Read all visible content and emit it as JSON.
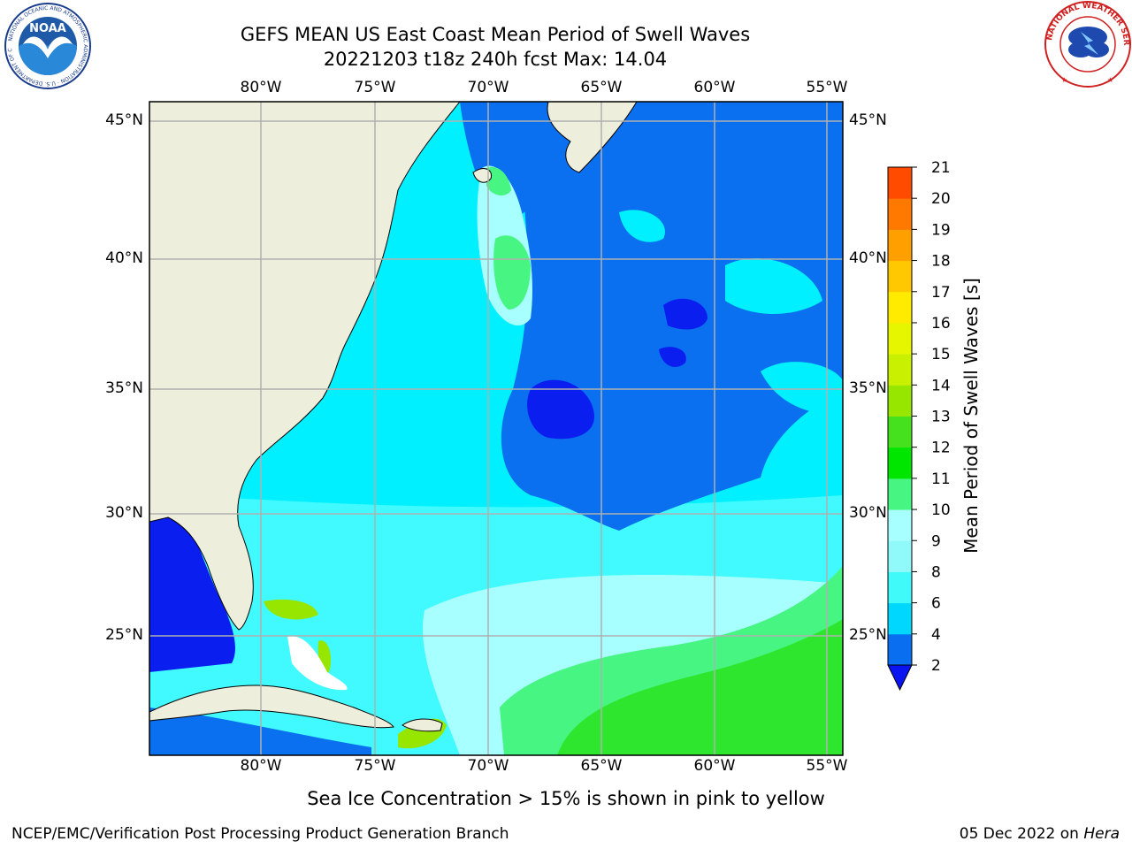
{
  "header": {
    "title_line1": "GEFS MEAN US East Coast Mean Period of Swell Waves",
    "title_line2": "20221203 t18z 240h fcst   Max: 14.04"
  },
  "map": {
    "lon_labels": [
      "80°W",
      "75°W",
      "70°W",
      "65°W",
      "60°W",
      "55°W"
    ],
    "lat_labels": [
      "45°N",
      "40°N",
      "35°N",
      "30°N",
      "25°N"
    ],
    "colors": {
      "land": "#eeeedc",
      "ocean_cyan": "#00f0ff",
      "ocean_blue": "#0a70f0",
      "deep_blue": "#0a1ef0",
      "light_cyan": "#60ffff",
      "pale_cyan": "#a0ffff",
      "green": "#30e830",
      "grid": "#b0b0b0"
    }
  },
  "colorbar": {
    "title": "Mean Period of Swell Waves [s]",
    "ticks": [
      "2",
      "4",
      "6",
      "8",
      "9",
      "10",
      "11",
      "12",
      "13",
      "14",
      "15",
      "16",
      "17",
      "18",
      "19",
      "20",
      "21"
    ],
    "colors": [
      "#0a6ef0",
      "#00d7ff",
      "#40fafa",
      "#90fafa",
      "#a8ffff",
      "#46f582",
      "#00e600",
      "#46e11e",
      "#96e600",
      "#c8f000",
      "#e6f500",
      "#ffeb00",
      "#ffc800",
      "#ffa000",
      "#ff7800",
      "#ff4b00",
      "#ff1400"
    ],
    "extend_color": "#0a14f0"
  },
  "subtitle": "Sea Ice Concentration > 15% is shown in pink to yellow",
  "footer": {
    "left": "NCEP/EMC/Verification Post Processing Product Generation Branch",
    "date": "05 Dec 2022 on ",
    "machine": "Hera"
  },
  "logos": {
    "noaa_text": "NOAA",
    "noaa_ring": "NATIONAL OCEANIC AND ATMOSPHERIC ADMINISTRATION · U.S. DEPARTMENT OF COMMERCE",
    "nws_ring": "NATIONAL WEATHER SERVICE"
  }
}
